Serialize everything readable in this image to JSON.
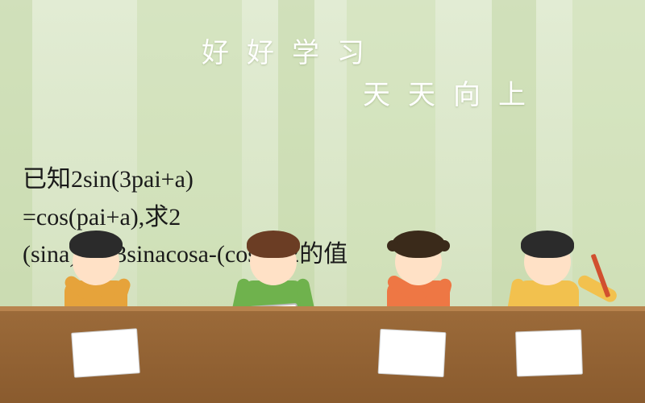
{
  "slogan_line1": "好好学习",
  "slogan_line2": "天天向上",
  "question_line1": "已知2sin(3pai+a)",
  "question_line2": "=cos(pai+a),求2",
  "question_line3": "(sina)^2+3sinacosa-(cosa)^2的值",
  "colors": {
    "bg_top": "#e2ecd4",
    "bg_bottom": "#cfdcb8",
    "stripe": "#c3d7a5",
    "slogan_text": "#ffffff",
    "question_text": "#1a1a1a",
    "desk": "#8a5b2e",
    "kid_orange": "#e6a33b",
    "kid_green": "#6fb24d",
    "kid_red": "#ee7744",
    "kid_yellow": "#f2c14e"
  }
}
